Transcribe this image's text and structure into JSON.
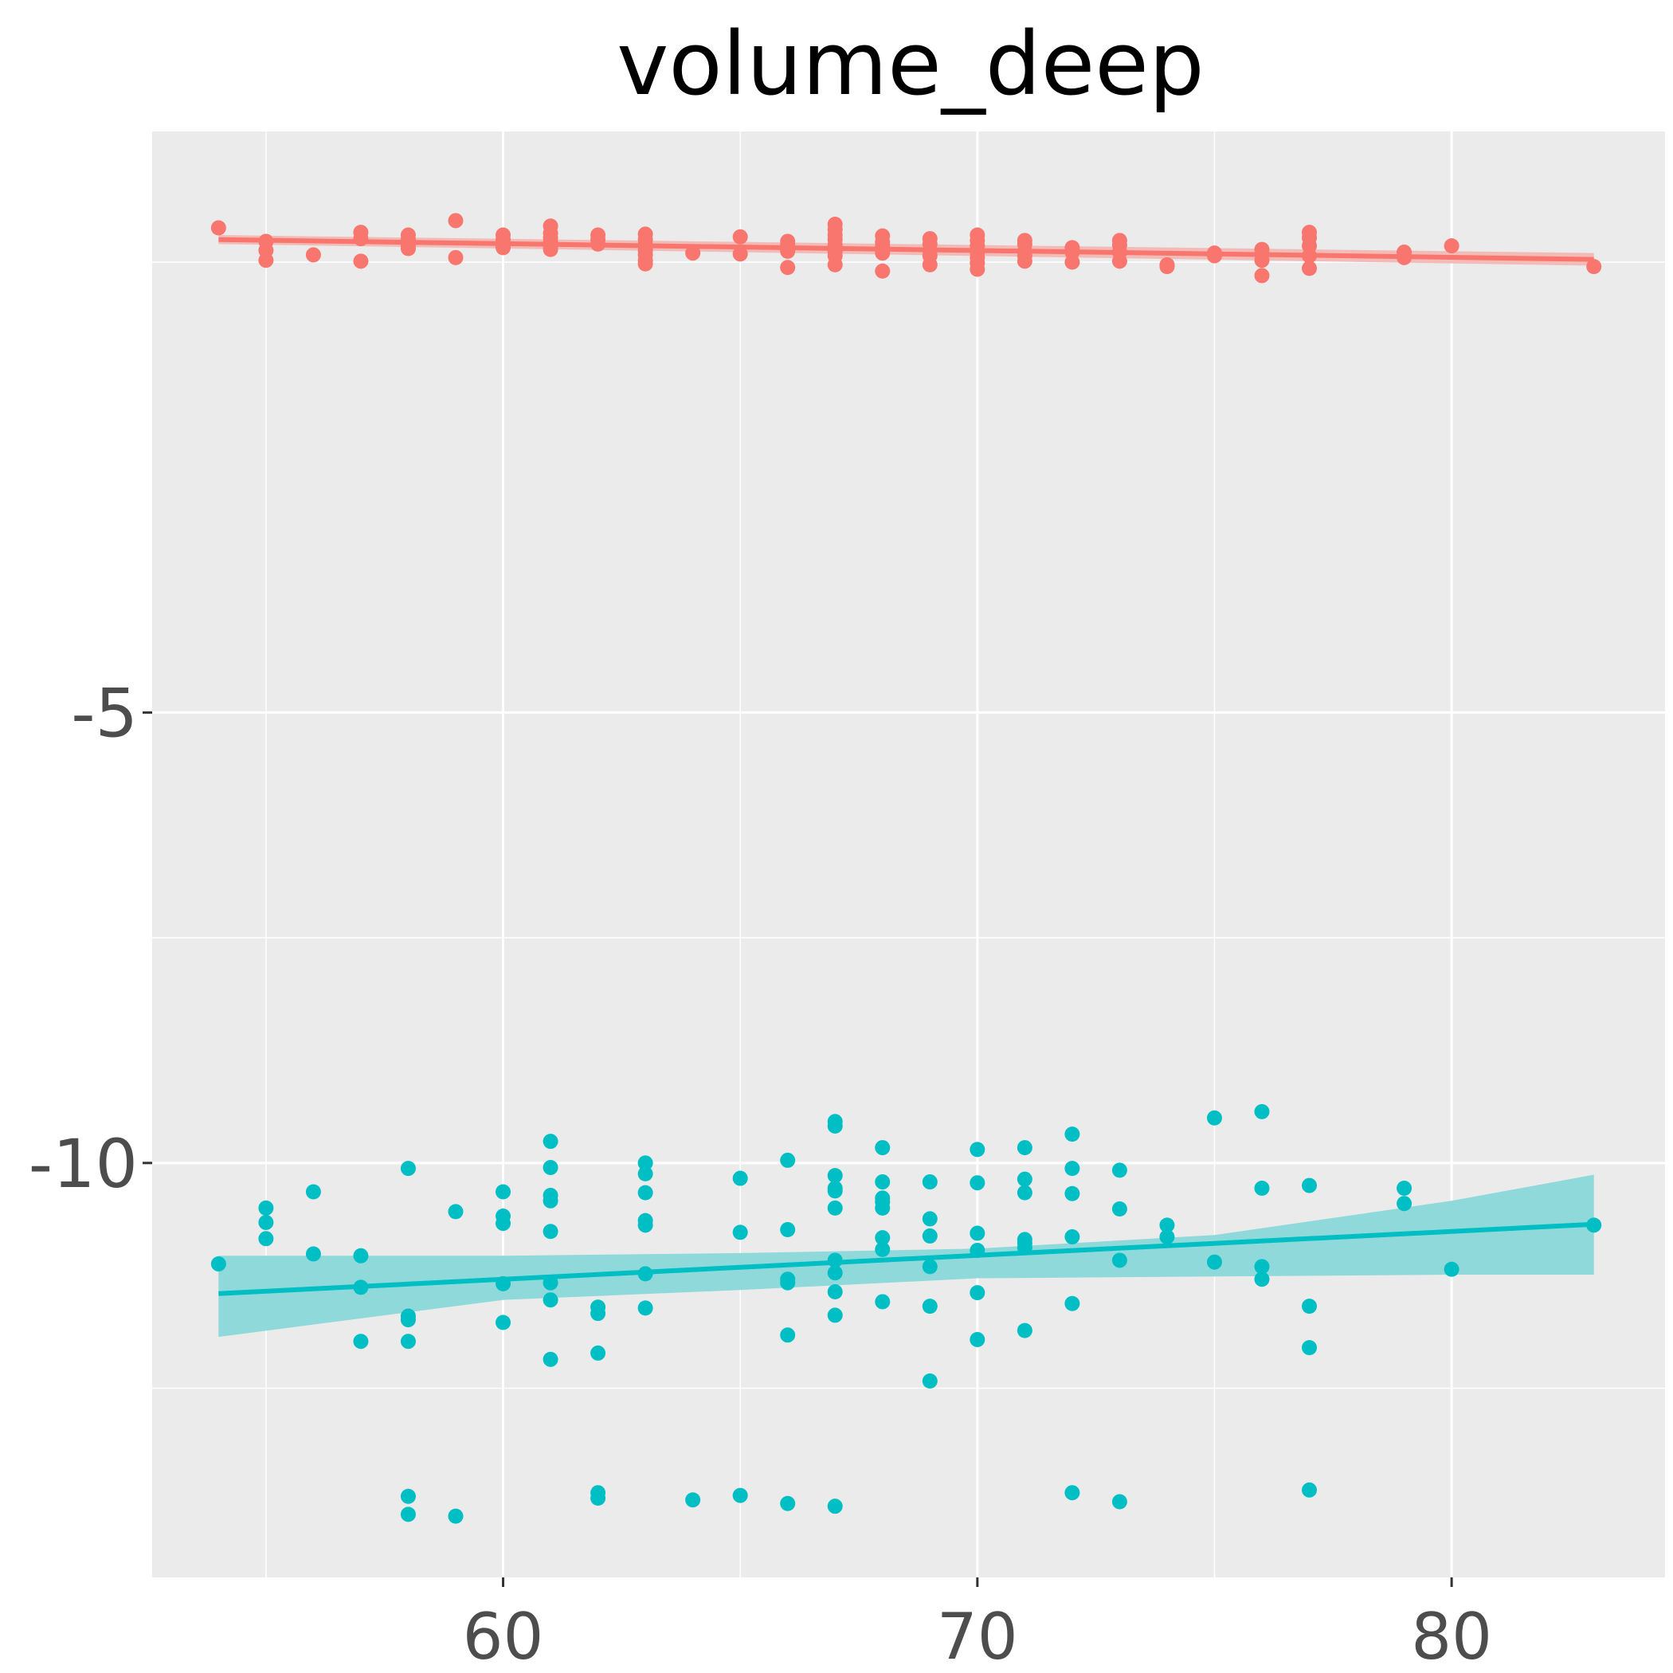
{
  "chart_data": {
    "type": "scatter",
    "title": "volume_deep",
    "xlabel": "",
    "ylabel": "",
    "xlim": [
      52.6,
      84.5
    ],
    "ylim": [
      -14.6,
      1.45
    ],
    "x_ticks": [
      60,
      70,
      80
    ],
    "x_tick_labels": [
      "60",
      "70",
      "80"
    ],
    "y_ticks": [
      -5,
      -10
    ],
    "y_tick_labels": [
      "-5",
      "-10"
    ],
    "grid": true,
    "legend": "none",
    "colors": {
      "panel": "#ebebeb",
      "grid": "#ffffff",
      "series_a": "#f8766d",
      "series_b": "#00bfc4",
      "band_b": "#8fd9db",
      "band_a": "#f4b6b1"
    },
    "series": [
      {
        "color": "#f8766d",
        "points": [
          [
            54,
            0.38
          ],
          [
            55,
            0.23
          ],
          [
            55,
            0.13
          ],
          [
            55,
            0.02
          ],
          [
            56,
            0.08
          ],
          [
            57,
            0.33
          ],
          [
            57,
            0.26
          ],
          [
            57,
            0.01
          ],
          [
            58,
            0.3
          ],
          [
            58,
            0.25
          ],
          [
            58,
            0.19
          ],
          [
            58,
            0.15
          ],
          [
            59,
            0.46
          ],
          [
            59,
            0.05
          ],
          [
            60,
            0.3
          ],
          [
            60,
            0.25
          ],
          [
            60,
            0.18
          ],
          [
            60,
            0.16
          ],
          [
            61,
            0.4
          ],
          [
            61,
            0.32
          ],
          [
            61,
            0.27
          ],
          [
            61,
            0.22
          ],
          [
            61,
            0.18
          ],
          [
            61,
            0.14
          ],
          [
            62,
            0.3
          ],
          [
            62,
            0.25
          ],
          [
            62,
            0.2
          ],
          [
            63,
            0.31
          ],
          [
            63,
            0.25
          ],
          [
            63,
            0.19
          ],
          [
            63,
            0.13
          ],
          [
            63,
            0.08
          ],
          [
            63,
            0.02
          ],
          [
            63,
            -0.02
          ],
          [
            64,
            0.1
          ],
          [
            65,
            0.28
          ],
          [
            65,
            0.09
          ],
          [
            66,
            0.23
          ],
          [
            66,
            0.19
          ],
          [
            66,
            0.15
          ],
          [
            66,
            0.12
          ],
          [
            66,
            -0.06
          ],
          [
            67,
            0.42
          ],
          [
            67,
            0.36
          ],
          [
            67,
            0.3
          ],
          [
            67,
            0.25
          ],
          [
            67,
            0.19
          ],
          [
            67,
            0.12
          ],
          [
            67,
            0.07
          ],
          [
            67,
            -0.03
          ],
          [
            68,
            0.29
          ],
          [
            68,
            0.22
          ],
          [
            68,
            0.17
          ],
          [
            68,
            0.1
          ],
          [
            68,
            -0.1
          ],
          [
            69,
            0.26
          ],
          [
            69,
            0.2
          ],
          [
            69,
            0.13
          ],
          [
            69,
            0.07
          ],
          [
            69,
            -0.03
          ],
          [
            70,
            0.3
          ],
          [
            70,
            0.24
          ],
          [
            70,
            0.18
          ],
          [
            70,
            0.11
          ],
          [
            70,
            0.05
          ],
          [
            70,
            -0.01
          ],
          [
            70,
            -0.08
          ],
          [
            71,
            0.24
          ],
          [
            71,
            0.2
          ],
          [
            71,
            0.12
          ],
          [
            71,
            0.07
          ],
          [
            71,
            0.01
          ],
          [
            72,
            0.16
          ],
          [
            72,
            0.11
          ],
          [
            72,
            0.0
          ],
          [
            73,
            0.24
          ],
          [
            73,
            0.19
          ],
          [
            73,
            0.11
          ],
          [
            73,
            0.01
          ],
          [
            74,
            -0.03
          ],
          [
            74,
            -0.05
          ],
          [
            75,
            0.1
          ],
          [
            75,
            0.07
          ],
          [
            76,
            0.14
          ],
          [
            76,
            0.09
          ],
          [
            76,
            0.02
          ],
          [
            76,
            -0.15
          ],
          [
            77,
            0.33
          ],
          [
            77,
            0.27
          ],
          [
            77,
            0.18
          ],
          [
            77,
            0.07
          ],
          [
            77,
            -0.07
          ],
          [
            79,
            0.11
          ],
          [
            79,
            0.05
          ],
          [
            80,
            0.18
          ],
          [
            83,
            -0.05
          ]
        ],
        "fit": {
          "x": [
            54,
            83
          ],
          "y": [
            0.25,
            0.03
          ]
        }
      },
      {
        "color": "#00bfc4",
        "points": [
          [
            54,
            -11.12
          ],
          [
            55,
            -10.5
          ],
          [
            55,
            -10.66
          ],
          [
            55,
            -10.84
          ],
          [
            56,
            -10.32
          ],
          [
            56,
            -11.01
          ],
          [
            57,
            -11.03
          ],
          [
            57,
            -11.38
          ],
          [
            57,
            -11.98
          ],
          [
            58,
            -10.06
          ],
          [
            58,
            -11.7
          ],
          [
            58,
            -11.74
          ],
          [
            58,
            -11.98
          ],
          [
            58,
            -13.7
          ],
          [
            58,
            -13.9
          ],
          [
            59,
            -10.54
          ],
          [
            59,
            -13.92
          ],
          [
            60,
            -10.32
          ],
          [
            60,
            -10.59
          ],
          [
            60,
            -10.67
          ],
          [
            60,
            -11.34
          ],
          [
            60,
            -11.77
          ],
          [
            61,
            -9.76
          ],
          [
            61,
            -10.05
          ],
          [
            61,
            -10.36
          ],
          [
            61,
            -10.42
          ],
          [
            61,
            -10.76
          ],
          [
            61,
            -11.33
          ],
          [
            61,
            -11.52
          ],
          [
            61,
            -12.18
          ],
          [
            62,
            -11.6
          ],
          [
            62,
            -11.67
          ],
          [
            62,
            -12.11
          ],
          [
            62,
            -13.66
          ],
          [
            62,
            -13.72
          ],
          [
            63,
            -10.0
          ],
          [
            63,
            -10.12
          ],
          [
            63,
            -10.33
          ],
          [
            63,
            -10.64
          ],
          [
            63,
            -10.69
          ],
          [
            63,
            -11.23
          ],
          [
            63,
            -11.61
          ],
          [
            64,
            -13.74
          ],
          [
            65,
            -10.17
          ],
          [
            65,
            -10.77
          ],
          [
            65,
            -13.69
          ],
          [
            66,
            -9.97
          ],
          [
            66,
            -10.74
          ],
          [
            66,
            -11.29
          ],
          [
            66,
            -11.33
          ],
          [
            66,
            -11.91
          ],
          [
            66,
            -13.78
          ],
          [
            67,
            -9.54
          ],
          [
            67,
            -9.59
          ],
          [
            67,
            -10.14
          ],
          [
            67,
            -10.28
          ],
          [
            67,
            -10.31
          ],
          [
            67,
            -10.5
          ],
          [
            67,
            -11.08
          ],
          [
            67,
            -11.22
          ],
          [
            67,
            -11.43
          ],
          [
            67,
            -11.69
          ],
          [
            67,
            -13.81
          ],
          [
            68,
            -9.83
          ],
          [
            68,
            -10.21
          ],
          [
            68,
            -10.39
          ],
          [
            68,
            -10.43
          ],
          [
            68,
            -10.5
          ],
          [
            68,
            -10.83
          ],
          [
            68,
            -10.96
          ],
          [
            68,
            -11.54
          ],
          [
            69,
            -10.21
          ],
          [
            69,
            -10.62
          ],
          [
            69,
            -10.81
          ],
          [
            69,
            -11.15
          ],
          [
            69,
            -11.59
          ],
          [
            69,
            -12.42
          ],
          [
            70,
            -9.85
          ],
          [
            70,
            -10.22
          ],
          [
            70,
            -10.78
          ],
          [
            70,
            -10.97
          ],
          [
            70,
            -11.44
          ],
          [
            70,
            -11.96
          ],
          [
            71,
            -9.83
          ],
          [
            71,
            -10.18
          ],
          [
            71,
            -10.33
          ],
          [
            71,
            -10.85
          ],
          [
            71,
            -10.89
          ],
          [
            71,
            -10.94
          ],
          [
            71,
            -11.86
          ],
          [
            72,
            -9.68
          ],
          [
            72,
            -10.06
          ],
          [
            72,
            -10.34
          ],
          [
            72,
            -10.82
          ],
          [
            72,
            -11.56
          ],
          [
            72,
            -13.66
          ],
          [
            73,
            -10.08
          ],
          [
            73,
            -10.51
          ],
          [
            73,
            -11.08
          ],
          [
            73,
            -13.76
          ],
          [
            74,
            -10.69
          ],
          [
            74,
            -10.82
          ],
          [
            75,
            -9.5
          ],
          [
            75,
            -11.1
          ],
          [
            76,
            -9.43
          ],
          [
            76,
            -10.28
          ],
          [
            76,
            -11.15
          ],
          [
            76,
            -11.29
          ],
          [
            77,
            -10.25
          ],
          [
            77,
            -11.59
          ],
          [
            77,
            -12.05
          ],
          [
            77,
            -13.63
          ],
          [
            79,
            -10.28
          ],
          [
            79,
            -10.45
          ],
          [
            80,
            -11.18
          ],
          [
            83,
            -10.69
          ]
        ],
        "fit": {
          "x": [
            54,
            83
          ],
          "y": [
            -11.45,
            -10.68
          ]
        },
        "band": {
          "x": [
            54,
            60,
            65,
            70,
            75,
            80,
            83
          ],
          "upper": [
            -11.03,
            -11.03,
            -11.0,
            -10.95,
            -10.8,
            -10.42,
            -10.13
          ],
          "lower": [
            -11.93,
            -11.52,
            -11.41,
            -11.28,
            -11.26,
            -11.24,
            -11.24
          ]
        }
      }
    ]
  }
}
